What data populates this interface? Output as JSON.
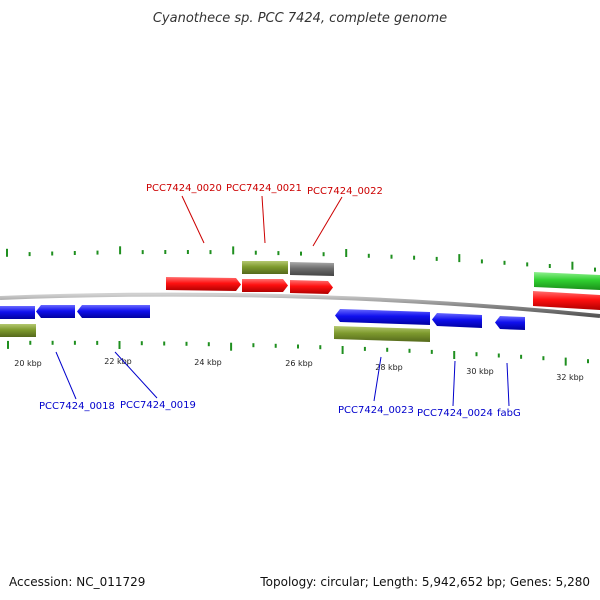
{
  "title": "Cyanothece sp. PCC 7424, complete genome",
  "footer": {
    "accession": "Accession: NC_011729",
    "summary": "Topology: circular; Length: 5,942,652 bp; Genes: 5,280"
  },
  "colors": {
    "backbone": "#8a8a8a",
    "tick": "#1f8f1f",
    "red_gene": "#ff1010",
    "blue_gene": "#1010ee",
    "olive_gene": "#7e9a2e",
    "gray_gene": "#6e6e6e",
    "green_gene": "#30d030",
    "label_red": "#cc0000",
    "label_blue": "#0000cc"
  },
  "tick_labels": [
    "20 kbp",
    "22 kbp",
    "24 kbp",
    "26 kbp",
    "28 kbp",
    "30 kbp",
    "32 kbp"
  ],
  "gene_labels_top": [
    "PCC7424_0020",
    "PCC7424_0021",
    "PCC7424_0022"
  ],
  "gene_labels_bottom": [
    "PCC7424_0018",
    "PCC7424_0019",
    "PCC7424_0023",
    "PCC7424_0024",
    "fabG"
  ]
}
